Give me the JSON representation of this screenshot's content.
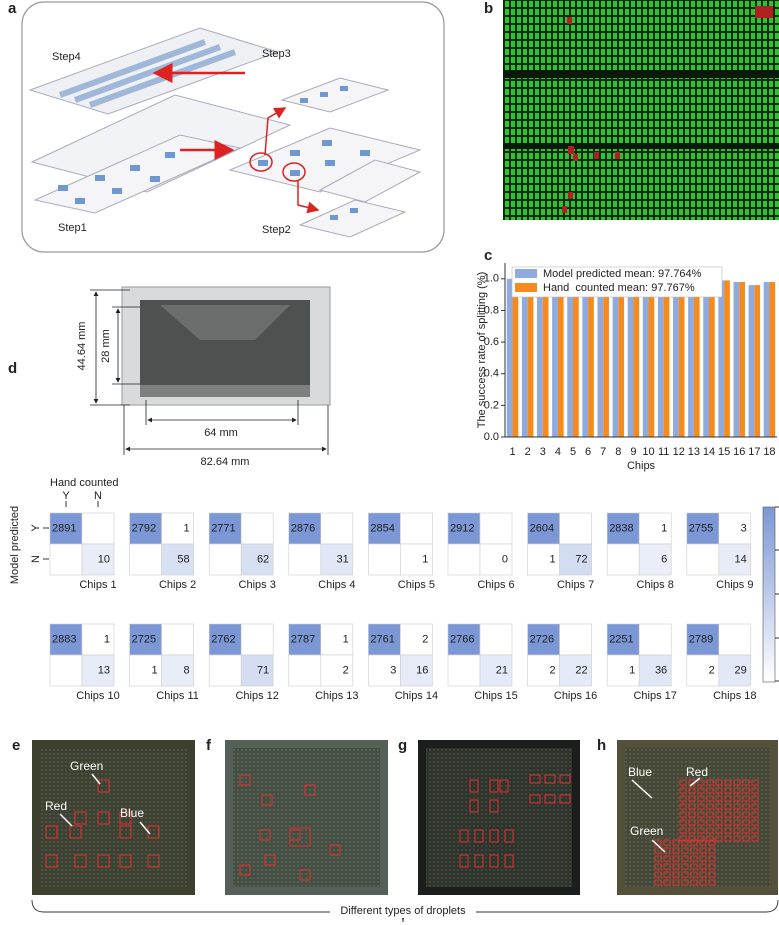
{
  "panel_labels": [
    "a",
    "b",
    "c",
    "d",
    "e",
    "f",
    "g",
    "h"
  ],
  "panel_a": {
    "steps": [
      "Step4",
      "Step3",
      "Step1",
      "Step2"
    ]
  },
  "dimensions": {
    "labels": [
      "44.64 mm",
      "28 mm",
      "64 mm",
      "82.64 mm"
    ]
  },
  "chart_data": {
    "type": "bar",
    "categories": [
      "1",
      "2",
      "3",
      "4",
      "5",
      "6",
      "7",
      "8",
      "9",
      "10",
      "11",
      "12",
      "13",
      "14",
      "15",
      "16",
      "17",
      "18"
    ],
    "series": [
      {
        "name": "Model predicted mean: 97.764%",
        "color": "#8eaadf",
        "values": [
          1.0,
          0.96,
          0.95,
          0.97,
          0.99,
          1.0,
          0.93,
          0.99,
          0.99,
          0.99,
          0.99,
          0.95,
          1.0,
          0.99,
          0.99,
          0.98,
          0.96,
          0.98
        ]
      },
      {
        "name": "Hand  counted mean: 97.767%",
        "color": "#f58a1f",
        "values": [
          0.99,
          0.96,
          0.95,
          0.98,
          1.0,
          1.0,
          0.93,
          1.0,
          0.99,
          1.0,
          1.0,
          0.95,
          1.0,
          0.99,
          0.99,
          0.98,
          0.96,
          0.98
        ]
      }
    ],
    "ylim": [
      0,
      1.1
    ],
    "yticks": [
      {
        "value": 0,
        "label": "0.0"
      },
      {
        "value": 0.2,
        "label": "0.2"
      },
      {
        "value": 0.4,
        "label": "0.4"
      },
      {
        "value": 0.6,
        "label": "0.6"
      },
      {
        "value": 0.8,
        "label": "0.8"
      },
      {
        "value": 1,
        "label": "1.0"
      }
    ],
    "xlabel": "Chips",
    "ylabel": "The success rate of splitting (%)",
    "legend": "upper-left"
  },
  "confusion": {
    "x_label": "Hand counted",
    "y_label": "Model predicted",
    "x_classes": [
      "Y",
      "N"
    ],
    "y_classes": [
      "Y",
      "N"
    ],
    "matrices": [
      {
        "label": "Chips 1",
        "values": [
          [
            2891,
            null
          ],
          [
            null,
            10
          ]
        ]
      },
      {
        "label": "Chips 2",
        "values": [
          [
            2792,
            1
          ],
          [
            null,
            58
          ]
        ]
      },
      {
        "label": "Chips 3",
        "values": [
          [
            2771,
            null
          ],
          [
            null,
            62
          ]
        ]
      },
      {
        "label": "Chips 4",
        "values": [
          [
            2876,
            null
          ],
          [
            null,
            31
          ]
        ]
      },
      {
        "label": "Chips 5",
        "values": [
          [
            2854,
            null
          ],
          [
            null,
            1
          ]
        ]
      },
      {
        "label": "Chips 6",
        "values": [
          [
            2912,
            null
          ],
          [
            null,
            0
          ]
        ]
      },
      {
        "label": "Chips 7",
        "values": [
          [
            2604,
            null
          ],
          [
            1,
            72
          ]
        ]
      },
      {
        "label": "Chips 8",
        "values": [
          [
            2838,
            1
          ],
          [
            null,
            6
          ]
        ]
      },
      {
        "label": "Chips 9",
        "values": [
          [
            2755,
            3
          ],
          [
            null,
            14
          ]
        ]
      },
      {
        "label": "Chips 10",
        "values": [
          [
            2883,
            1
          ],
          [
            null,
            13
          ]
        ]
      },
      {
        "label": "Chips 11",
        "values": [
          [
            2725,
            null
          ],
          [
            1,
            8
          ]
        ]
      },
      {
        "label": "Chips 12",
        "values": [
          [
            2762,
            null
          ],
          [
            null,
            71
          ]
        ]
      },
      {
        "label": "Chips 13",
        "values": [
          [
            2787,
            1
          ],
          [
            null,
            2
          ]
        ]
      },
      {
        "label": "Chips 14",
        "values": [
          [
            2761,
            2
          ],
          [
            3,
            16
          ]
        ]
      },
      {
        "label": "Chips 15",
        "values": [
          [
            2766,
            null
          ],
          [
            null,
            21
          ]
        ]
      },
      {
        "label": "Chips 16",
        "values": [
          [
            2726,
            null
          ],
          [
            2,
            22
          ]
        ]
      },
      {
        "label": "Chips 17",
        "values": [
          [
            2251,
            null
          ],
          [
            1,
            36
          ]
        ]
      },
      {
        "label": "Chips 18",
        "values": [
          [
            2789,
            null
          ],
          [
            2,
            29
          ]
        ]
      }
    ]
  },
  "panel_e": {
    "labels": [
      "Green",
      "Red",
      "Blue"
    ]
  },
  "panel_h": {
    "labels": [
      "Blue",
      "Red",
      "Green"
    ]
  },
  "caption": "Different types of droplets"
}
